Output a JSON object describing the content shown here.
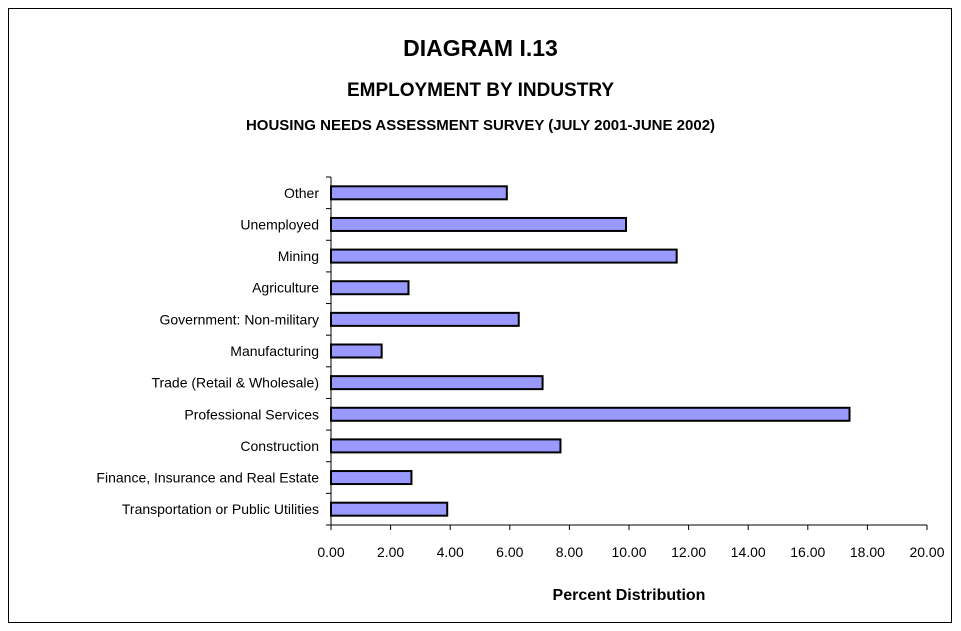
{
  "chart_data": {
    "type": "bar",
    "orientation": "horizontal",
    "title": "DIAGRAM I.13",
    "subtitle": "EMPLOYMENT BY INDUSTRY",
    "subtitle2": "HOUSING NEEDS ASSESSMENT SURVEY (JULY 2001-JUNE 2002)",
    "xlabel": "Percent Distribution",
    "ylabel": "",
    "categories": [
      "Other",
      "Unemployed",
      "Mining",
      "Agriculture",
      "Government: Non-military",
      "Manufacturing",
      "Trade (Retail & Wholesale)",
      "Professional Services",
      "Construction",
      "Finance, Insurance and Real Estate",
      "Transportation or Public Utilities"
    ],
    "values": [
      5.9,
      9.9,
      11.6,
      2.6,
      6.3,
      1.7,
      7.1,
      17.4,
      7.7,
      2.7,
      3.9
    ],
    "xlim": [
      0,
      20
    ],
    "xticks": [
      "0.00",
      "2.00",
      "4.00",
      "6.00",
      "8.00",
      "10.00",
      "12.00",
      "14.00",
      "16.00",
      "18.00",
      "20.00"
    ],
    "grid": false,
    "legend": "none",
    "bar_color": "#9999ff",
    "bar_edge_color": "#000000"
  }
}
